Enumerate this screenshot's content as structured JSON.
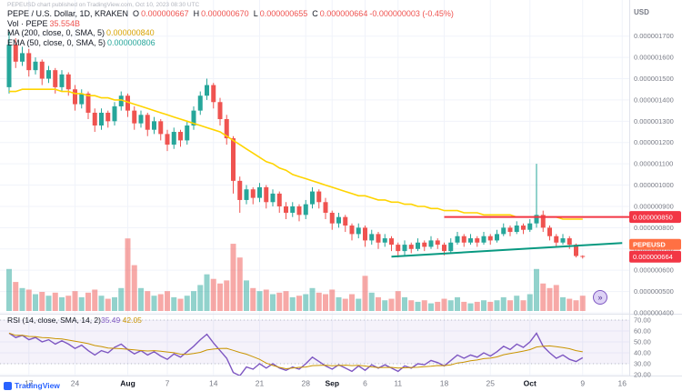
{
  "watermark": "PEPEUSD chart published on TradingView.com, Oct 10, 2023 08:30 UTC",
  "legend": {
    "title": "PEPE / U.S. Dollar, 1D, KRAKEN",
    "ohlc": {
      "o_label": "O",
      "o": "0.000000667",
      "h_label": "H",
      "h": "0.000000670",
      "l_label": "L",
      "l": "0.000000655",
      "c_label": "C",
      "c": "0.000000664",
      "change": "-0.000000003 (-0.45%)"
    },
    "vol_label": "Vol · PEPE",
    "vol_value": "35.554B",
    "ma_label": "MA (200, close, 0, SMA, 5)",
    "ma_value": "0.000000840",
    "ema_label": "EMA (50, close, 0, SMA, 5)",
    "ema_value": "0.000000806",
    "rsi_label": "RSI (14, close, SMA, 14, 2)",
    "rsi_value": "35.49",
    "rsi_ma_value": "42.05"
  },
  "axis": {
    "currency": "USD",
    "price_ticks": [
      1.7,
      1.6,
      1.5,
      1.4,
      1.3,
      1.2,
      1.1,
      1.0,
      0.9,
      0.8,
      0.7,
      0.6,
      0.5,
      0.4
    ],
    "rsi_ticks": [
      70,
      60,
      50,
      40,
      30,
      20
    ],
    "time_ticks": [
      {
        "i": 3,
        "label": "17",
        "month": false
      },
      {
        "i": 10,
        "label": "24",
        "month": false
      },
      {
        "i": 18,
        "label": "Aug",
        "month": true
      },
      {
        "i": 24,
        "label": "7",
        "month": false
      },
      {
        "i": 31,
        "label": "14",
        "month": false
      },
      {
        "i": 38,
        "label": "21",
        "month": false
      },
      {
        "i": 45,
        "label": "28",
        "month": false
      },
      {
        "i": 49,
        "label": "Sep",
        "month": true
      },
      {
        "i": 54,
        "label": "6",
        "month": false
      },
      {
        "i": 59,
        "label": "11",
        "month": false
      },
      {
        "i": 66,
        "label": "18",
        "month": false
      },
      {
        "i": 73,
        "label": "25",
        "month": false
      },
      {
        "i": 79,
        "label": "Oct",
        "month": true
      },
      {
        "i": 87,
        "label": "9",
        "month": false
      },
      {
        "i": 93,
        "label": "16",
        "month": false
      }
    ],
    "badges": {
      "line_price": "0.000000850",
      "symbol": "PEPEUSD",
      "last_price": "0.000000664"
    }
  },
  "branding": {
    "logo_text": "TradingView"
  },
  "goto_realtime_icon": "»",
  "colors": {
    "up": "#26a69a",
    "down": "#ef5350",
    "vol_up": "rgba(38,166,154,0.5)",
    "vol_down": "rgba(239,83,80,0.5)",
    "ma_line": "#ffd400",
    "ma_value": "#d8a300",
    "ema_value": "#26a69a",
    "rsi": "#7e57c2",
    "rsi_ma": "#c99400",
    "band": "rgba(126,87,194,0.08)",
    "resistance": "#f23645",
    "support": "#089981",
    "grid": "#f0f3fa",
    "divider": "#e0e3eb",
    "axis_text": "#787b86",
    "text": "#131722",
    "badge_red": "#f23645",
    "tag": "#ff7043",
    "brand": "#2962ff"
  },
  "chart_data": {
    "type": "candlestick",
    "title": "PEPE / U.S. Dollar, 1D, KRAKEN",
    "symbol": "PEPE/USD",
    "exchange": "KRAKEN",
    "interval": "1D",
    "price_unit": "USD x1e-6",
    "start_date": "2023-07-14",
    "ylim": [
      0.4,
      1.75
    ],
    "rsi_range": [
      20,
      70
    ],
    "candles": [
      [
        1.46,
        1.72,
        1.43,
        1.66
      ],
      [
        1.66,
        1.69,
        1.55,
        1.58
      ],
      [
        1.58,
        1.65,
        1.56,
        1.62
      ],
      [
        1.62,
        1.64,
        1.51,
        1.54
      ],
      [
        1.54,
        1.6,
        1.52,
        1.58
      ],
      [
        1.58,
        1.59,
        1.47,
        1.5
      ],
      [
        1.5,
        1.56,
        1.48,
        1.54
      ],
      [
        1.54,
        1.55,
        1.43,
        1.46
      ],
      [
        1.46,
        1.54,
        1.44,
        1.52
      ],
      [
        1.52,
        1.53,
        1.42,
        1.45
      ],
      [
        1.45,
        1.47,
        1.35,
        1.38
      ],
      [
        1.38,
        1.45,
        1.36,
        1.43
      ],
      [
        1.43,
        1.44,
        1.31,
        1.34
      ],
      [
        1.34,
        1.36,
        1.25,
        1.28
      ],
      [
        1.28,
        1.36,
        1.26,
        1.34
      ],
      [
        1.34,
        1.35,
        1.27,
        1.3
      ],
      [
        1.3,
        1.39,
        1.28,
        1.37
      ],
      [
        1.37,
        1.44,
        1.35,
        1.42
      ],
      [
        1.42,
        1.43,
        1.32,
        1.35
      ],
      [
        1.35,
        1.37,
        1.26,
        1.29
      ],
      [
        1.29,
        1.35,
        1.27,
        1.33
      ],
      [
        1.33,
        1.34,
        1.23,
        1.26
      ],
      [
        1.26,
        1.32,
        1.24,
        1.3
      ],
      [
        1.3,
        1.31,
        1.21,
        1.24
      ],
      [
        1.24,
        1.26,
        1.16,
        1.19
      ],
      [
        1.19,
        1.27,
        1.17,
        1.25
      ],
      [
        1.25,
        1.26,
        1.18,
        1.21
      ],
      [
        1.21,
        1.3,
        1.19,
        1.28
      ],
      [
        1.28,
        1.37,
        1.26,
        1.35
      ],
      [
        1.35,
        1.44,
        1.33,
        1.42
      ],
      [
        1.42,
        1.5,
        1.4,
        1.47
      ],
      [
        1.47,
        1.48,
        1.36,
        1.39
      ],
      [
        1.39,
        1.41,
        1.28,
        1.31
      ],
      [
        1.31,
        1.33,
        1.19,
        1.22
      ],
      [
        1.22,
        1.23,
        0.96,
        1.02
      ],
      [
        1.02,
        1.04,
        0.87,
        0.93
      ],
      [
        0.93,
        1.0,
        0.91,
        0.98
      ],
      [
        0.98,
        0.99,
        0.91,
        0.94
      ],
      [
        0.94,
        1.01,
        0.92,
        0.99
      ],
      [
        0.99,
        1.0,
        0.89,
        0.92
      ],
      [
        0.92,
        0.98,
        0.9,
        0.96
      ],
      [
        0.96,
        0.97,
        0.87,
        0.9
      ],
      [
        0.9,
        0.92,
        0.84,
        0.87
      ],
      [
        0.87,
        0.92,
        0.85,
        0.9
      ],
      [
        0.9,
        0.91,
        0.83,
        0.86
      ],
      [
        0.86,
        0.93,
        0.84,
        0.91
      ],
      [
        0.91,
        0.99,
        0.89,
        0.97
      ],
      [
        0.97,
        0.98,
        0.89,
        0.92
      ],
      [
        0.92,
        0.94,
        0.84,
        0.87
      ],
      [
        0.87,
        0.88,
        0.79,
        0.82
      ],
      [
        0.82,
        0.87,
        0.8,
        0.85
      ],
      [
        0.85,
        0.86,
        0.78,
        0.81
      ],
      [
        0.81,
        0.82,
        0.74,
        0.77
      ],
      [
        0.77,
        0.82,
        0.75,
        0.8
      ],
      [
        0.8,
        0.81,
        0.71,
        0.74
      ],
      [
        0.74,
        0.79,
        0.72,
        0.77
      ],
      [
        0.77,
        0.78,
        0.7,
        0.73
      ],
      [
        0.73,
        0.77,
        0.71,
        0.75
      ],
      [
        0.75,
        0.76,
        0.69,
        0.72
      ],
      [
        0.72,
        0.73,
        0.66,
        0.69
      ],
      [
        0.69,
        0.74,
        0.67,
        0.72
      ],
      [
        0.72,
        0.73,
        0.68,
        0.7
      ],
      [
        0.7,
        0.75,
        0.69,
        0.73
      ],
      [
        0.73,
        0.74,
        0.69,
        0.71
      ],
      [
        0.71,
        0.76,
        0.7,
        0.74
      ],
      [
        0.74,
        0.75,
        0.7,
        0.72
      ],
      [
        0.72,
        0.73,
        0.67,
        0.69
      ],
      [
        0.69,
        0.75,
        0.68,
        0.73
      ],
      [
        0.73,
        0.78,
        0.72,
        0.76
      ],
      [
        0.76,
        0.77,
        0.71,
        0.73
      ],
      [
        0.73,
        0.77,
        0.72,
        0.75
      ],
      [
        0.75,
        0.76,
        0.71,
        0.73
      ],
      [
        0.73,
        0.78,
        0.72,
        0.76
      ],
      [
        0.76,
        0.77,
        0.72,
        0.74
      ],
      [
        0.74,
        0.79,
        0.73,
        0.77
      ],
      [
        0.77,
        0.82,
        0.76,
        0.8
      ],
      [
        0.8,
        0.81,
        0.76,
        0.78
      ],
      [
        0.78,
        0.83,
        0.77,
        0.81
      ],
      [
        0.81,
        0.82,
        0.77,
        0.79
      ],
      [
        0.79,
        0.84,
        0.78,
        0.82
      ],
      [
        0.82,
        1.1,
        0.8,
        0.86
      ],
      [
        0.86,
        0.88,
        0.78,
        0.8
      ],
      [
        0.8,
        0.81,
        0.74,
        0.76
      ],
      [
        0.76,
        0.77,
        0.71,
        0.73
      ],
      [
        0.73,
        0.77,
        0.72,
        0.75
      ],
      [
        0.75,
        0.76,
        0.7,
        0.72
      ],
      [
        0.72,
        0.725,
        0.66,
        0.667
      ],
      [
        0.667,
        0.67,
        0.655,
        0.664
      ]
    ],
    "volume": [
      55,
      38,
      30,
      28,
      22,
      25,
      20,
      24,
      18,
      20,
      26,
      18,
      24,
      28,
      20,
      16,
      18,
      30,
      95,
      60,
      30,
      26,
      20,
      22,
      26,
      18,
      16,
      20,
      26,
      34,
      48,
      42,
      36,
      40,
      88,
      70,
      40,
      30,
      26,
      28,
      22,
      24,
      26,
      18,
      20,
      22,
      30,
      24,
      22,
      28,
      18,
      16,
      22,
      16,
      46,
      24,
      18,
      14,
      16,
      26,
      18,
      14,
      12,
      14,
      10,
      12,
      16,
      14,
      18,
      12,
      10,
      12,
      14,
      12,
      14,
      18,
      14,
      20,
      14,
      22,
      55,
      36,
      30,
      34,
      18,
      16,
      14,
      20
    ],
    "ma200": [
      1.44,
      1.44,
      1.45,
      1.45,
      1.45,
      1.45,
      1.45,
      1.45,
      1.44,
      1.44,
      1.43,
      1.43,
      1.42,
      1.42,
      1.41,
      1.41,
      1.4,
      1.4,
      1.39,
      1.38,
      1.37,
      1.36,
      1.35,
      1.34,
      1.33,
      1.32,
      1.31,
      1.3,
      1.29,
      1.28,
      1.27,
      1.26,
      1.25,
      1.23,
      1.21,
      1.19,
      1.17,
      1.15,
      1.13,
      1.11,
      1.1,
      1.08,
      1.07,
      1.05,
      1.04,
      1.03,
      1.02,
      1.01,
      1.0,
      0.99,
      0.98,
      0.97,
      0.96,
      0.95,
      0.95,
      0.94,
      0.93,
      0.93,
      0.92,
      0.92,
      0.91,
      0.91,
      0.9,
      0.9,
      0.89,
      0.89,
      0.88,
      0.88,
      0.88,
      0.87,
      0.87,
      0.87,
      0.86,
      0.86,
      0.86,
      0.86,
      0.86,
      0.85,
      0.85,
      0.85,
      0.85,
      0.85,
      0.85,
      0.85,
      0.84,
      0.84,
      0.84,
      0.84
    ],
    "rsi": [
      58,
      54,
      56,
      52,
      54,
      50,
      52,
      48,
      51,
      48,
      44,
      47,
      42,
      38,
      42,
      40,
      45,
      48,
      43,
      39,
      42,
      38,
      41,
      37,
      34,
      39,
      36,
      41,
      46,
      52,
      57,
      49,
      42,
      35,
      22,
      19,
      27,
      25,
      30,
      26,
      30,
      26,
      24,
      27,
      25,
      30,
      36,
      32,
      28,
      25,
      29,
      26,
      23,
      28,
      24,
      29,
      26,
      29,
      26,
      23,
      28,
      26,
      30,
      29,
      33,
      31,
      28,
      33,
      38,
      35,
      38,
      36,
      40,
      37,
      41,
      46,
      43,
      48,
      45,
      50,
      58,
      46,
      40,
      35,
      38,
      34,
      32,
      35.49
    ],
    "annotations": {
      "resistance_line": {
        "price": 0.85,
        "from_index": 66
      },
      "support_trendline": {
        "from": {
          "index": 58,
          "price": 0.664
        },
        "to": {
          "index": 93,
          "price": 0.728
        }
      }
    }
  }
}
